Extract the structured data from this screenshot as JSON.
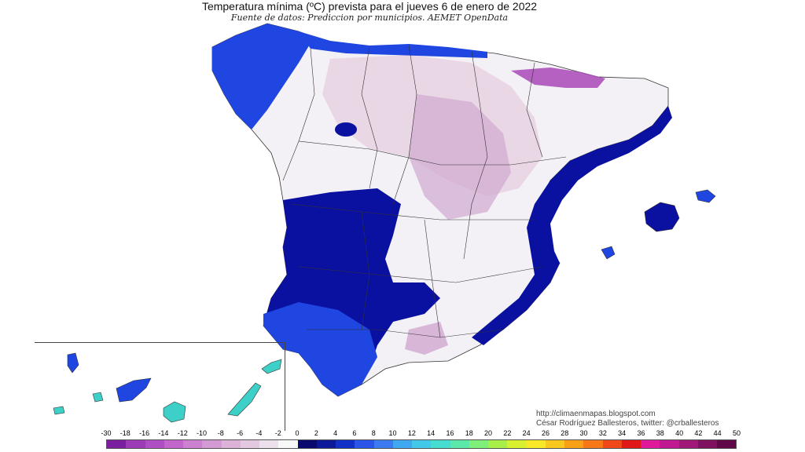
{
  "map": {
    "title": "Temperatura mínima (ºC) prevista para el jueves 6 de enero de 2022",
    "subtitle": "Fuente de datos: Prediccion por municipios. AEMET OpenData",
    "credits": {
      "blog": "http://climaenmapas.blogspot.com",
      "author": "César Rodríguez Ballesteros, twitter: @crballesteros"
    },
    "regions_shown": [
      "Iberian Peninsula",
      "Balearic Islands",
      "Canary Islands"
    ]
  },
  "legend": {
    "labels": [
      "-30",
      "-18",
      "-16",
      "-14",
      "-12",
      "-10",
      "-8",
      "-6",
      "-4",
      "-2",
      "0",
      "2",
      "4",
      "6",
      "8",
      "10",
      "12",
      "14",
      "16",
      "18",
      "20",
      "22",
      "24",
      "26",
      "28",
      "30",
      "32",
      "34",
      "36",
      "38",
      "40",
      "42",
      "44",
      "50"
    ],
    "colors": [
      "#7a1fa0",
      "#9b3bb5",
      "#b04fc4",
      "#c266cc",
      "#cc80d0",
      "#d49ad4",
      "#dcb2d8",
      "#e4c8e0",
      "#ece0ec",
      "#f8f8f8",
      "#0a0a6e",
      "#0c1a9a",
      "#1030c8",
      "#2b55e8",
      "#3b7af0",
      "#3fa8f0",
      "#42c8e8",
      "#45ddd0",
      "#5ce8a8",
      "#7ef07a",
      "#a8f048",
      "#d8f030",
      "#f8e828",
      "#f8c820",
      "#f8a018",
      "#f87818",
      "#f04818",
      "#e01818",
      "#e0189a",
      "#c01890",
      "#a01878",
      "#801060",
      "#600848"
    ],
    "palette_names": {
      "cold_deep": "#0a10a0",
      "cold_mid": "#1f46e0",
      "cold_light": "#3a6cf0",
      "near_zero": "#f3f1f5",
      "frost_light": "#e6d2e2",
      "frost_mid": "#cfa8d0",
      "frost_deep": "#a848b8",
      "canary_cyan": "#3cd0c8"
    }
  }
}
